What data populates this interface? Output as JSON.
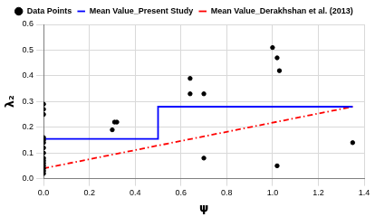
{
  "chart_data": {
    "type": "scatter",
    "x_label": "ψ",
    "y_label": "λ₂",
    "xlim": [
      0,
      1.4
    ],
    "ylim": [
      0,
      0.6
    ],
    "xticks": [
      {
        "value": 0,
        "label": "0.0"
      },
      0.2,
      0.4,
      0.6,
      0.8,
      {
        "value": 1,
        "label": "1.0"
      },
      1.2,
      1.4
    ],
    "yticks": [
      {
        "value": 0,
        "label": "0.0"
      },
      0.1,
      0.2,
      0.3,
      0.4,
      0.5,
      0.6
    ],
    "grid": true,
    "legend": "top",
    "series": [
      {
        "name": "Data Points",
        "type": "scatter",
        "color": "#000000",
        "marker": "circle",
        "x": [
          0,
          0,
          0,
          0,
          0,
          0,
          0,
          0,
          0,
          0,
          0,
          0,
          0,
          0,
          0,
          0.3,
          0.31,
          0.32,
          0.64,
          0.64,
          0.7,
          0.7,
          1.0,
          1.02,
          1.03,
          1.02,
          1.35
        ],
        "values": [
          0.29,
          0.27,
          0.25,
          0.16,
          0.15,
          0.14,
          0.12,
          0.1,
          0.08,
          0.07,
          0.06,
          0.05,
          0.04,
          0.03,
          0.02,
          0.19,
          0.22,
          0.22,
          0.39,
          0.33,
          0.33,
          0.08,
          0.51,
          0.47,
          0.42,
          0.05,
          0.14
        ]
      },
      {
        "name": "Mean Value_Present Study",
        "type": "line",
        "color": "#0000ff",
        "line_style": "solid",
        "x": [
          0,
          0.5,
          0.5,
          1.35
        ],
        "values": [
          0.155,
          0.155,
          0.28,
          0.28
        ]
      },
      {
        "name": "Mean Value_Derakhshan et al. (2013)",
        "type": "line",
        "color": "#ff0000",
        "line_style": "dash-dot",
        "x": [
          0,
          1.35
        ],
        "values": [
          0.04,
          0.28
        ]
      }
    ]
  }
}
